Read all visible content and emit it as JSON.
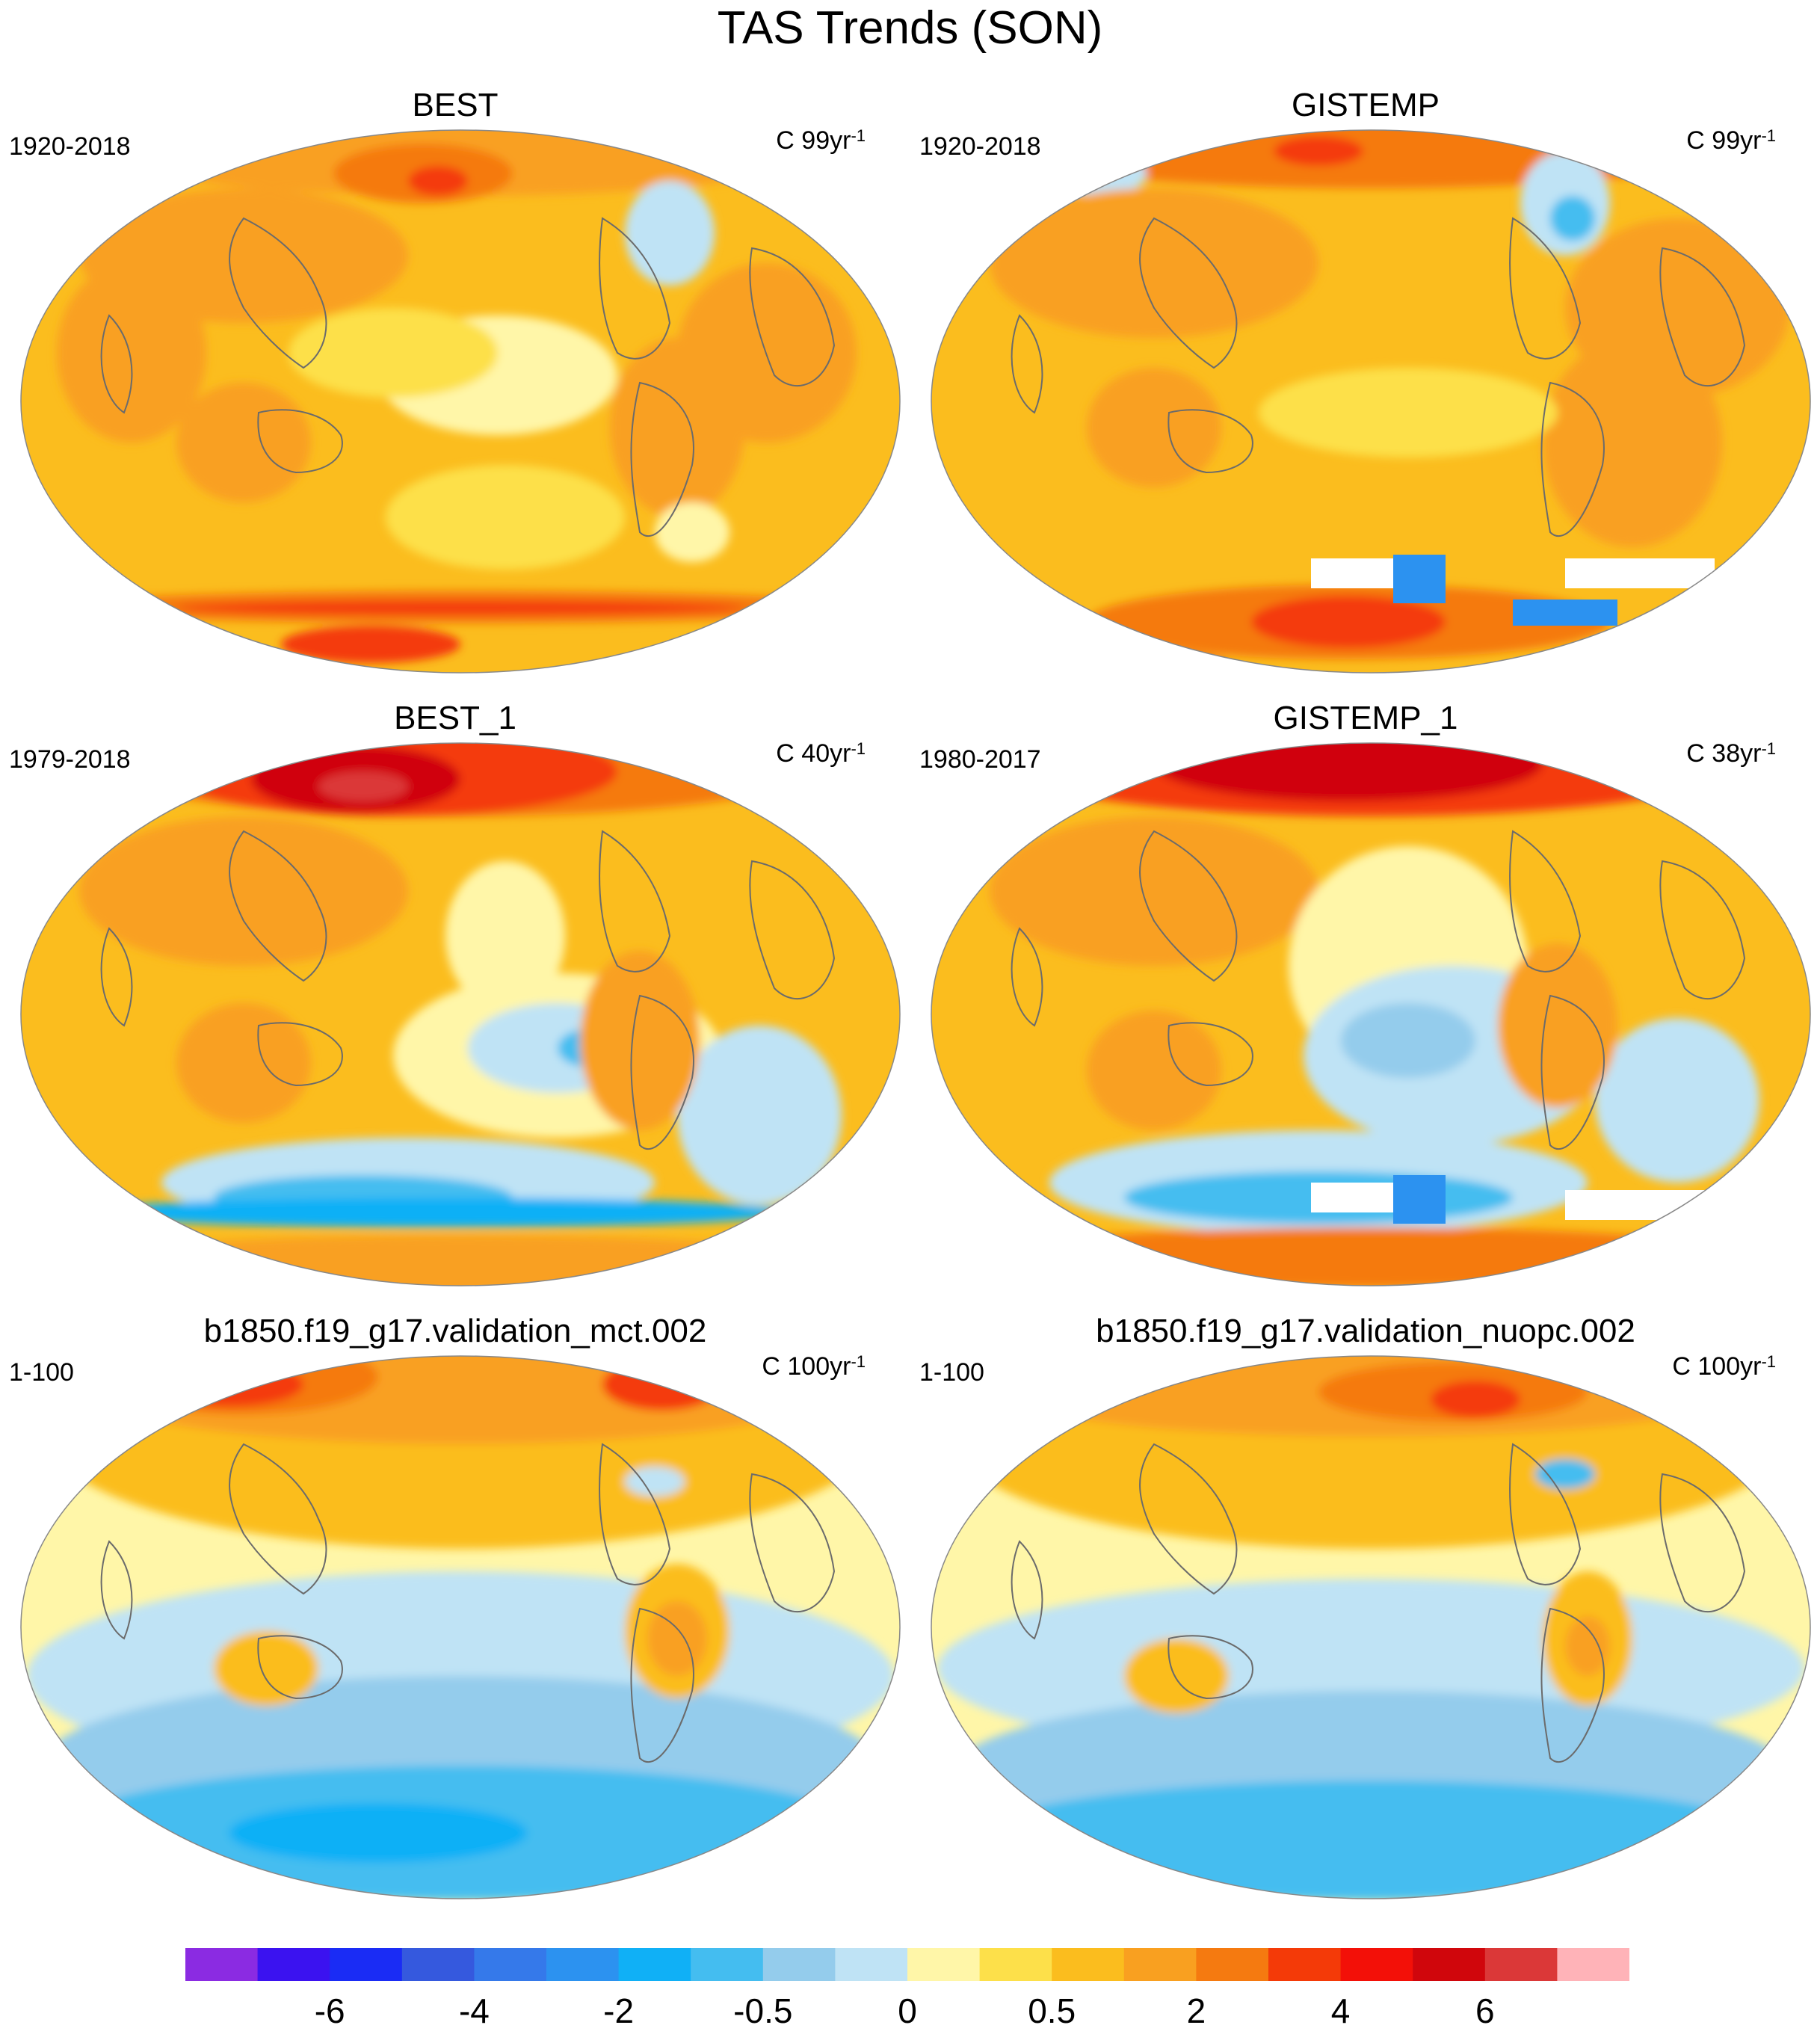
{
  "figure_title": "TAS Trends (SON)",
  "panels": [
    {
      "title": "BEST",
      "period": "1920-2018",
      "units_base": "C 99yr",
      "units_exp": "-1",
      "field": "warm_uniform"
    },
    {
      "title": "GISTEMP",
      "period": "1920-2018",
      "units_base": "C 99yr",
      "units_exp": "-1",
      "field": "warm_uniform_missing"
    },
    {
      "title": "BEST_1",
      "period": "1979-2018",
      "units_base": "C 40yr",
      "units_exp": "-1",
      "field": "arctic_hot_so_cool"
    },
    {
      "title": "GISTEMP_1",
      "period": "1980-2017",
      "units_base": "C 38yr",
      "units_exp": "-1",
      "field": "arctic_hot_so_cool_missing"
    },
    {
      "title": "b1850.f19_g17.validation_mct.002",
      "period": "1-100",
      "units_base": "C 100yr",
      "units_exp": "-1",
      "field": "nh_warm_sh_cool"
    },
    {
      "title": "b1850.f19_g17.validation_nuopc.002",
      "period": "1-100",
      "units_base": "C 100yr",
      "units_exp": "-1",
      "field": "nh_warm_sh_cool_light"
    }
  ],
  "colorbar": {
    "colors": [
      "#8b2be2",
      "#3b12f0",
      "#1a2cf5",
      "#3559de",
      "#3579ea",
      "#2c92f0",
      "#10b0f6",
      "#44bdf0",
      "#94ccec",
      "#bfe3f5",
      "#fff6a8",
      "#fde04a",
      "#fbbd1e",
      "#f9a020",
      "#f57a10",
      "#f43a08",
      "#f31008",
      "#d0060c",
      "#db3838",
      "#ffb3b8"
    ],
    "tick_labels": [
      "-6",
      "-4",
      "-2",
      "-0.5",
      "0",
      "0.5",
      "2",
      "4",
      "6"
    ],
    "tick_boundary_index": [
      2,
      4,
      6,
      8,
      10,
      12,
      14,
      16,
      18
    ]
  }
}
